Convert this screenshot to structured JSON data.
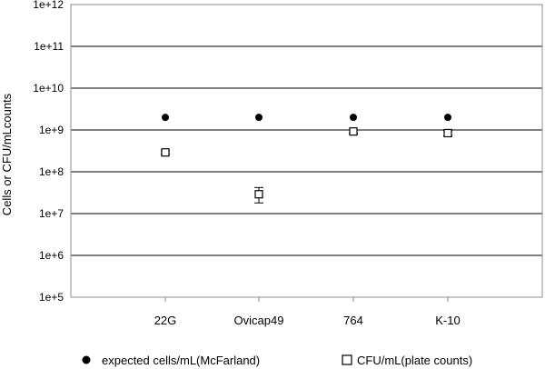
{
  "chart_data": {
    "type": "scatter",
    "title": "",
    "xlabel": "",
    "ylabel": "Cells or CFU/mLcounts",
    "yscale": "log",
    "ylim": [
      100000,
      1000000000000
    ],
    "ytick_values": [
      100000,
      1000000,
      10000000,
      100000000,
      1000000000,
      10000000000,
      100000000000,
      1000000000000
    ],
    "ytick_labels": [
      "1e+5",
      "1e+6",
      "1e+7",
      "1e+8",
      "1e+9",
      "1e+10",
      "1e+11",
      "1e+12"
    ],
    "grid": "horizontal",
    "legend_position": "bottom",
    "categories": [
      "22G",
      "Ovicap49",
      "764",
      "K-10"
    ],
    "series": [
      {
        "name": "expected cells/mL(McFarland)",
        "marker": "filled-circle",
        "color": "#000000",
        "values": [
          2000000000,
          2000000000,
          2000000000,
          2000000000
        ]
      },
      {
        "name": "CFU/mL(plate counts)",
        "marker": "open-square",
        "color": "#000000",
        "values": [
          290000000,
          29000000,
          920000000,
          840000000
        ],
        "error_low": [
          260000000,
          18000000,
          830000000,
          720000000
        ],
        "error_high": [
          320000000,
          42000000,
          1000000000,
          960000000
        ]
      }
    ]
  }
}
